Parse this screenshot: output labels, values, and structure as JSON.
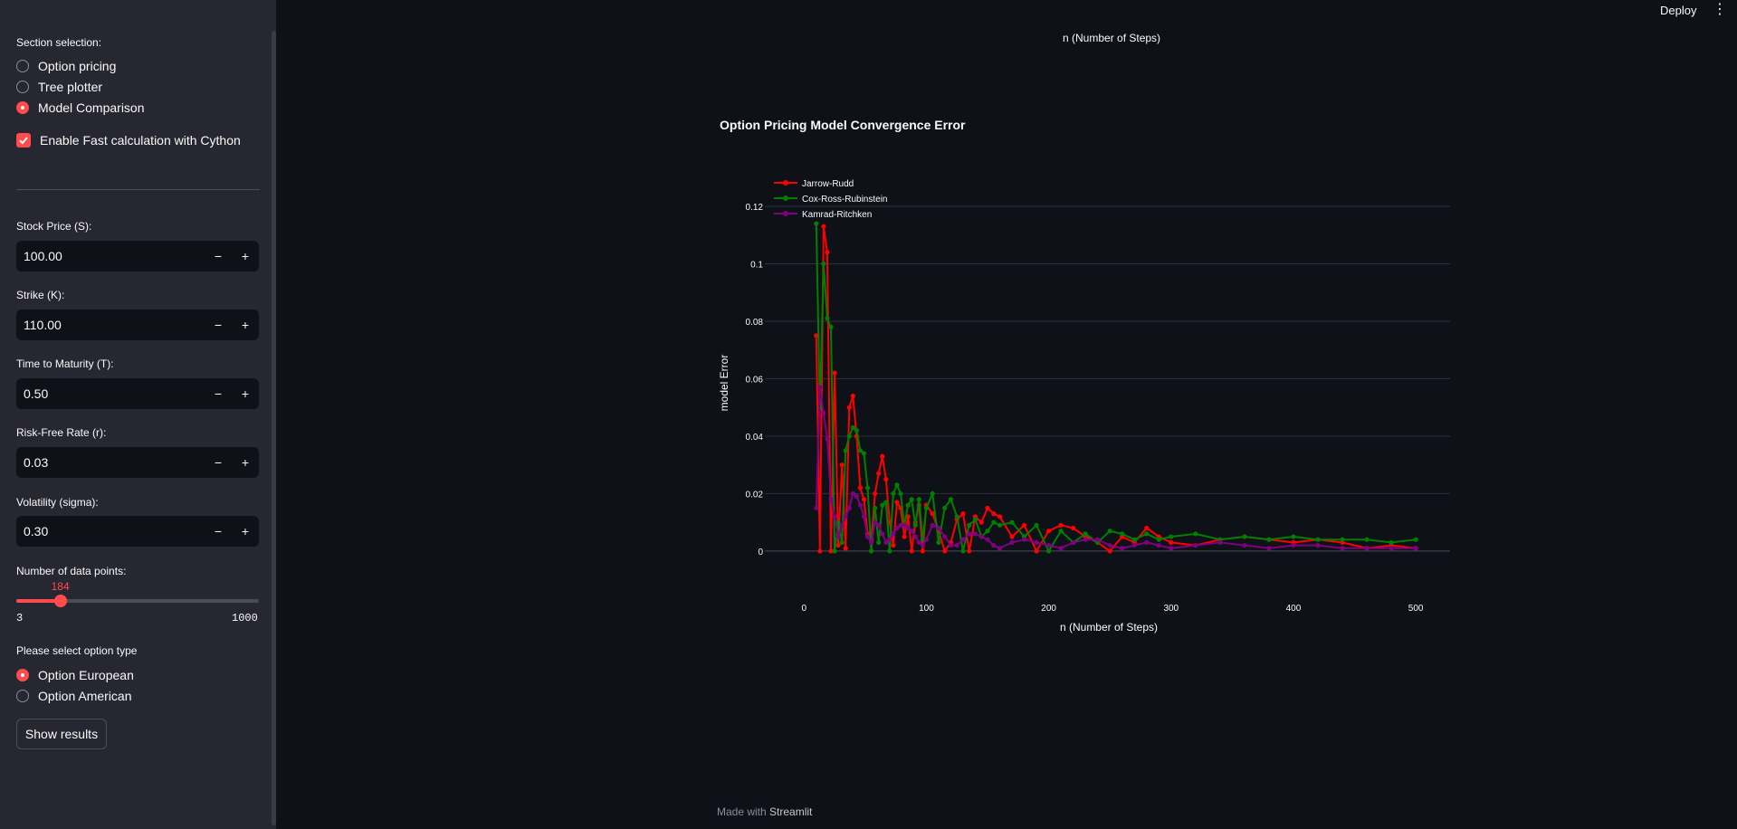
{
  "sidebar": {
    "section_label": "Section selection:",
    "sections": [
      {
        "label": "Option pricing",
        "selected": false
      },
      {
        "label": "Tree plotter",
        "selected": false
      },
      {
        "label": "Model Comparison",
        "selected": true
      }
    ],
    "cython_label": "Enable Fast calculation with Cython",
    "cython_checked": true,
    "inputs": [
      {
        "label": "Stock Price (S):",
        "value": "100.00"
      },
      {
        "label": "Strike (K):",
        "value": "110.00"
      },
      {
        "label": "Time to Maturity (T):",
        "value": "0.50"
      },
      {
        "label": "Risk-Free Rate (r):",
        "value": "0.03"
      },
      {
        "label": "Volatility (sigma):",
        "value": "0.30"
      }
    ],
    "stepper": {
      "minus": "−",
      "plus": "+"
    },
    "slider": {
      "label": "Number of data points:",
      "value": "184",
      "min": "3",
      "max": "1000"
    },
    "option_type_label": "Please select option type",
    "option_types": [
      {
        "label": "Option European",
        "selected": true
      },
      {
        "label": "Option American",
        "selected": false
      }
    ],
    "show_button": "Show results"
  },
  "header": {
    "deploy": "Deploy",
    "menu": "⋮"
  },
  "main": {
    "top_xlabel": "n (Number of Steps)"
  },
  "footer": {
    "prefix": "Made with",
    "brand": "Streamlit"
  },
  "colors": {
    "accent": "#ff4b4b",
    "bg": "#0e1117",
    "sidebar": "#262730"
  },
  "chart_data": {
    "type": "line",
    "title": "Option Pricing Model Convergence Error",
    "xlabel": "n (Number of Steps)",
    "ylabel": "model Error",
    "xlim": [
      -32,
      528
    ],
    "ylim": [
      -0.012,
      0.12
    ],
    "xticks": [
      0,
      100,
      200,
      300,
      400,
      500
    ],
    "yticks": [
      0,
      0.02,
      0.04,
      0.06,
      0.08,
      0.1,
      0.12
    ],
    "ytick_labels": [
      "0",
      "0.02",
      "0.04",
      "0.06",
      "0.08",
      "0.1",
      "0.12"
    ],
    "legend_position": "top-left",
    "grid": true,
    "series": [
      {
        "name": "Jarrow-Rudd",
        "color": "#ff0000",
        "x": [
          10,
          13,
          16,
          19,
          22,
          25,
          28,
          31,
          34,
          37,
          40,
          43,
          46,
          49,
          52,
          55,
          58,
          61,
          64,
          67,
          70,
          73,
          76,
          79,
          82,
          85,
          88,
          91,
          94,
          97,
          100,
          105,
          110,
          115,
          120,
          125,
          130,
          135,
          140,
          145,
          150,
          155,
          160,
          170,
          180,
          190,
          200,
          210,
          220,
          230,
          240,
          250,
          260,
          270,
          280,
          290,
          300,
          320,
          340,
          360,
          380,
          400,
          420,
          440,
          460,
          480,
          500
        ],
        "y": [
          0.075,
          0.0,
          0.113,
          0.104,
          0.0,
          0.062,
          0.002,
          0.03,
          0.001,
          0.05,
          0.054,
          0.04,
          0.022,
          0.018,
          0.006,
          0.004,
          0.02,
          0.027,
          0.033,
          0.025,
          0.01,
          0.002,
          0.017,
          0.015,
          0.005,
          0.012,
          0.0,
          0.01,
          0.016,
          0.0,
          0.016,
          0.013,
          0.007,
          0.0,
          0.003,
          0.011,
          0.013,
          0.0,
          0.012,
          0.01,
          0.015,
          0.013,
          0.012,
          0.005,
          0.009,
          0.0,
          0.007,
          0.009,
          0.008,
          0.005,
          0.003,
          0.0,
          0.005,
          0.003,
          0.008,
          0.005,
          0.003,
          0.002,
          0.004,
          0.005,
          0.004,
          0.003,
          0.004,
          0.003,
          0.001,
          0.002,
          0.001
        ]
      },
      {
        "name": "Cox-Ross-Rubinstein",
        "color": "#008000",
        "x": [
          10,
          13,
          16,
          19,
          22,
          25,
          28,
          31,
          34,
          37,
          40,
          43,
          46,
          49,
          52,
          55,
          58,
          61,
          64,
          67,
          70,
          73,
          76,
          79,
          82,
          85,
          88,
          91,
          94,
          97,
          100,
          105,
          110,
          115,
          120,
          125,
          130,
          135,
          140,
          145,
          150,
          155,
          160,
          170,
          180,
          190,
          200,
          210,
          220,
          230,
          240,
          250,
          260,
          270,
          280,
          290,
          300,
          320,
          340,
          360,
          380,
          400,
          420,
          440,
          460,
          480,
          500
        ],
        "y": [
          0.114,
          0.05,
          0.1,
          0.081,
          0.078,
          0.0,
          0.01,
          0.003,
          0.035,
          0.04,
          0.043,
          0.042,
          0.035,
          0.034,
          0.022,
          0.0,
          0.015,
          0.003,
          0.016,
          0.017,
          0.0,
          0.02,
          0.023,
          0.02,
          0.009,
          0.016,
          0.018,
          0.009,
          0.018,
          0.004,
          0.015,
          0.02,
          0.003,
          0.015,
          0.018,
          0.012,
          0.0,
          0.009,
          0.011,
          0.005,
          0.007,
          0.01,
          0.009,
          0.01,
          0.005,
          0.009,
          0.0,
          0.007,
          0.003,
          0.006,
          0.003,
          0.007,
          0.006,
          0.004,
          0.006,
          0.004,
          0.005,
          0.006,
          0.004,
          0.005,
          0.004,
          0.005,
          0.004,
          0.004,
          0.004,
          0.003,
          0.004
        ]
      },
      {
        "name": "Kamrad-Ritchken",
        "color": "#800080",
        "x": [
          10,
          13,
          16,
          19,
          22,
          25,
          28,
          31,
          34,
          37,
          40,
          43,
          46,
          49,
          52,
          55,
          58,
          61,
          64,
          67,
          70,
          73,
          76,
          79,
          82,
          85,
          88,
          91,
          94,
          97,
          100,
          105,
          110,
          115,
          120,
          125,
          130,
          135,
          140,
          145,
          150,
          155,
          160,
          170,
          180,
          190,
          200,
          210,
          220,
          230,
          240,
          250,
          260,
          270,
          280,
          290,
          300,
          320,
          340,
          360,
          380,
          400,
          420,
          440,
          460,
          480,
          500
        ],
        "y": [
          0.015,
          0.057,
          0.048,
          0.039,
          0.018,
          0.012,
          0.005,
          0.009,
          0.012,
          0.015,
          0.02,
          0.019,
          0.016,
          0.012,
          0.005,
          0.003,
          0.01,
          0.009,
          0.006,
          0.003,
          0.004,
          0.006,
          0.008,
          0.009,
          0.009,
          0.008,
          0.007,
          0.005,
          0.003,
          0.002,
          0.004,
          0.009,
          0.008,
          0.005,
          0.002,
          0.002,
          0.004,
          0.006,
          0.006,
          0.005,
          0.004,
          0.002,
          0.001,
          0.003,
          0.004,
          0.003,
          0.002,
          0.001,
          0.003,
          0.004,
          0.004,
          0.002,
          0.001,
          0.002,
          0.003,
          0.002,
          0.001,
          0.002,
          0.003,
          0.002,
          0.001,
          0.002,
          0.002,
          0.001,
          0.001,
          0.001,
          0.001
        ]
      }
    ]
  }
}
